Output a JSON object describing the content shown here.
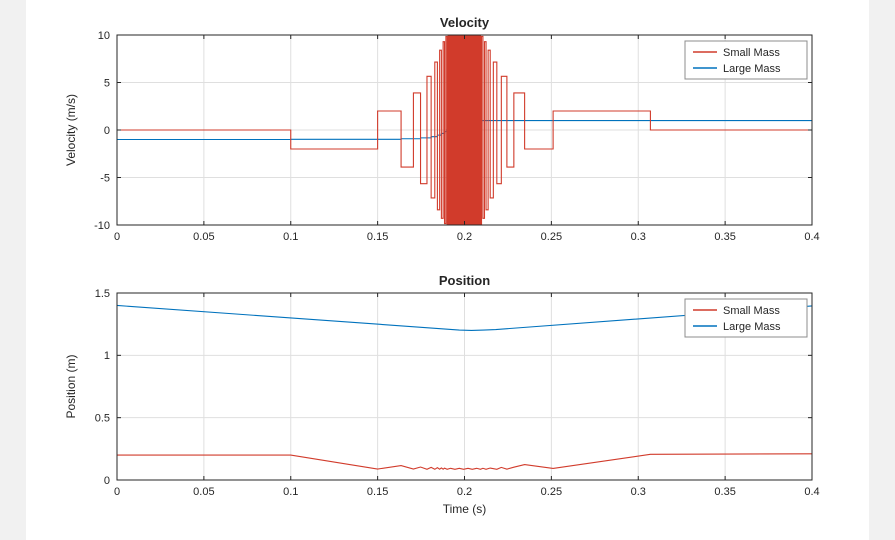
{
  "window": {
    "background": "#ffffff",
    "edge_color": "#f1f1f1"
  },
  "style": {
    "axes_color": "#262626",
    "grid_color": "#dfdfdf",
    "legend_border": "#8c8c8c",
    "plot_bg": "#ffffff",
    "tick_font_size": 11,
    "title_font_size": 13,
    "label_font_size": 12,
    "legend_font_size": 11
  },
  "chart_data": [
    {
      "type": "line",
      "title": "Velocity",
      "xlabel": "",
      "ylabel": "Velocity (m/s)",
      "xlim": [
        0,
        0.4
      ],
      "ylim": [
        -10,
        10
      ],
      "xticks": [
        0,
        0.05,
        0.1,
        0.15,
        0.2,
        0.25,
        0.3,
        0.35,
        0.4
      ],
      "yticks": [
        -10,
        -5,
        0,
        5,
        10
      ],
      "grid": true,
      "legend_position": "top-right",
      "series": [
        {
          "name": "Small Mass",
          "color": "#d13b2b",
          "mode": "step",
          "points": [
            [
              0.0,
              0
            ],
            [
              0.1,
              -2.0
            ],
            [
              0.15,
              2.0
            ],
            [
              0.1635,
              -3.9
            ],
            [
              0.1706,
              3.9
            ],
            [
              0.1747,
              -5.65
            ],
            [
              0.1784,
              5.65
            ],
            [
              0.1808,
              -7.15
            ],
            [
              0.1829,
              7.15
            ],
            [
              0.1844,
              -8.4
            ],
            [
              0.1857,
              8.4
            ],
            [
              0.1867,
              -9.3
            ],
            [
              0.1877,
              9.3
            ],
            [
              0.1885,
              -9.85
            ],
            [
              0.1893,
              9.85
            ],
            [
              0.19,
              -10.1
            ],
            [
              0.1906,
              10.1
            ],
            [
              0.1912,
              -10.1
            ],
            [
              0.1918,
              10.1
            ],
            [
              0.1924,
              -10.1
            ],
            [
              0.193,
              10.1
            ],
            [
              0.1936,
              -10.1
            ],
            [
              0.1942,
              10.1
            ],
            [
              0.1948,
              -10.1
            ],
            [
              0.1954,
              10.1
            ],
            [
              0.196,
              -10.1
            ],
            [
              0.1966,
              10.1
            ],
            [
              0.1972,
              -10.1
            ],
            [
              0.1978,
              10.1
            ],
            [
              0.1984,
              -10.1
            ],
            [
              0.199,
              10.1
            ],
            [
              0.1996,
              -10.1
            ],
            [
              0.2002,
              10.1
            ],
            [
              0.2008,
              -10.1
            ],
            [
              0.2014,
              10.1
            ],
            [
              0.202,
              -10.1
            ],
            [
              0.2026,
              10.1
            ],
            [
              0.2032,
              -10.1
            ],
            [
              0.2038,
              10.1
            ],
            [
              0.2044,
              -10.1
            ],
            [
              0.205,
              10.1
            ],
            [
              0.2056,
              -10.1
            ],
            [
              0.2062,
              10.1
            ],
            [
              0.2068,
              -10.1
            ],
            [
              0.2074,
              10.1
            ],
            [
              0.208,
              -10.1
            ],
            [
              0.2086,
              10.1
            ],
            [
              0.2092,
              -10.1
            ],
            [
              0.2098,
              9.85
            ],
            [
              0.2106,
              -9.3
            ],
            [
              0.2115,
              9.3
            ],
            [
              0.2124,
              -8.4
            ],
            [
              0.2136,
              8.4
            ],
            [
              0.2148,
              -7.15
            ],
            [
              0.2166,
              7.15
            ],
            [
              0.2186,
              -5.65
            ],
            [
              0.2212,
              5.65
            ],
            [
              0.2244,
              -3.9
            ],
            [
              0.2284,
              3.9
            ],
            [
              0.2346,
              -2.0
            ],
            [
              0.251,
              2.0
            ],
            [
              0.307,
              0
            ]
          ]
        },
        {
          "name": "Large Mass",
          "color": "#0072bd",
          "mode": "step",
          "points": [
            [
              0.0,
              -1.0
            ],
            [
              0.1,
              -0.98
            ],
            [
              0.1635,
              -0.92
            ],
            [
              0.1747,
              -0.83
            ],
            [
              0.1808,
              -0.7
            ],
            [
              0.1844,
              -0.54
            ],
            [
              0.1867,
              -0.36
            ],
            [
              0.1885,
              -0.17
            ],
            [
              0.19,
              0.03
            ],
            [
              0.1918,
              0.22
            ],
            [
              0.1936,
              0.41
            ],
            [
              0.1954,
              0.58
            ],
            [
              0.1972,
              0.73
            ],
            [
              0.199,
              0.85
            ],
            [
              0.2008,
              0.94
            ],
            [
              0.2026,
              0.99
            ]
          ]
        }
      ]
    },
    {
      "type": "line",
      "title": "Position",
      "xlabel": "Time (s)",
      "ylabel": "Position (m)",
      "xlim": [
        0,
        0.4
      ],
      "ylim": [
        0,
        1.5
      ],
      "xticks": [
        0,
        0.05,
        0.1,
        0.15,
        0.2,
        0.25,
        0.3,
        0.35,
        0.4
      ],
      "yticks": [
        0,
        0.5,
        1,
        1.5
      ],
      "grid": true,
      "legend_position": "top-right",
      "series": [
        {
          "name": "Small Mass",
          "color": "#d13b2b",
          "mode": "linear",
          "points": [
            [
              0.0,
              0.2
            ],
            [
              0.1,
              0.2
            ],
            [
              0.15,
              0.088
            ],
            [
              0.1635,
              0.116
            ],
            [
              0.1706,
              0.088
            ],
            [
              0.1747,
              0.104
            ],
            [
              0.1784,
              0.086
            ],
            [
              0.1808,
              0.101
            ],
            [
              0.1829,
              0.086
            ],
            [
              0.1844,
              0.099
            ],
            [
              0.1857,
              0.087
            ],
            [
              0.1867,
              0.097
            ],
            [
              0.1877,
              0.087
            ],
            [
              0.1885,
              0.095
            ],
            [
              0.19,
              0.086
            ],
            [
              0.192,
              0.094
            ],
            [
              0.1945,
              0.086
            ],
            [
              0.197,
              0.094
            ],
            [
              0.1995,
              0.086
            ],
            [
              0.202,
              0.094
            ],
            [
              0.2045,
              0.086
            ],
            [
              0.207,
              0.094
            ],
            [
              0.2092,
              0.086
            ],
            [
              0.2106,
              0.094
            ],
            [
              0.2124,
              0.086
            ],
            [
              0.2148,
              0.096
            ],
            [
              0.2186,
              0.086
            ],
            [
              0.2212,
              0.101
            ],
            [
              0.2244,
              0.087
            ],
            [
              0.2284,
              0.103
            ],
            [
              0.2346,
              0.124
            ],
            [
              0.251,
              0.093
            ],
            [
              0.307,
              0.206
            ],
            [
              0.4,
              0.21
            ]
          ]
        },
        {
          "name": "Large Mass",
          "color": "#0072bd",
          "mode": "linear",
          "points": [
            [
              0.0,
              1.4
            ],
            [
              0.19,
              1.21
            ],
            [
              0.197,
              1.203
            ],
            [
              0.204,
              1.2
            ],
            [
              0.211,
              1.203
            ],
            [
              0.218,
              1.207
            ],
            [
              0.4,
              1.396
            ]
          ]
        }
      ]
    }
  ]
}
